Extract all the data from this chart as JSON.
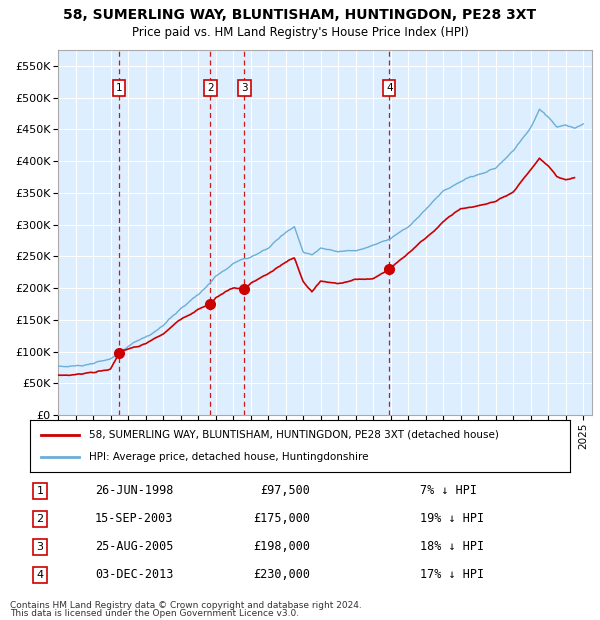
{
  "title": "58, SUMERLING WAY, BLUNTISHAM, HUNTINGDON, PE28 3XT",
  "subtitle": "Price paid vs. HM Land Registry's House Price Index (HPI)",
  "ylim": [
    0,
    575000
  ],
  "yticks": [
    0,
    50000,
    100000,
    150000,
    200000,
    250000,
    300000,
    350000,
    400000,
    450000,
    500000,
    550000
  ],
  "ytick_labels": [
    "£0",
    "£50K",
    "£100K",
    "£150K",
    "£200K",
    "£250K",
    "£300K",
    "£350K",
    "£400K",
    "£450K",
    "£500K",
    "£550K"
  ],
  "hpi_color": "#6baed6",
  "sale_color": "#cc0000",
  "bg_color": "#ddeeff",
  "grid_color": "#ffffff",
  "sale_points": [
    {
      "date_num": 1998.49,
      "price": 97500,
      "label": "1"
    },
    {
      "date_num": 2003.71,
      "price": 175000,
      "label": "2"
    },
    {
      "date_num": 2005.65,
      "price": 198000,
      "label": "3"
    },
    {
      "date_num": 2013.92,
      "price": 230000,
      "label": "4"
    }
  ],
  "sale_labels": [
    {
      "num": "1",
      "date": "26-JUN-1998",
      "price": "£97,500",
      "hpi": "7% ↓ HPI"
    },
    {
      "num": "2",
      "date": "15-SEP-2003",
      "price": "£175,000",
      "hpi": "19% ↓ HPI"
    },
    {
      "num": "3",
      "date": "25-AUG-2005",
      "price": "£198,000",
      "hpi": "18% ↓ HPI"
    },
    {
      "num": "4",
      "date": "03-DEC-2013",
      "price": "£230,000",
      "hpi": "17% ↓ HPI"
    }
  ],
  "legend_entries": [
    "58, SUMERLING WAY, BLUNTISHAM, HUNTINGDON, PE28 3XT (detached house)",
    "HPI: Average price, detached house, Huntingdonshire"
  ],
  "footer_line1": "Contains HM Land Registry data © Crown copyright and database right 2024.",
  "footer_line2": "This data is licensed under the Open Government Licence v3.0.",
  "xlim_start": 1995.0,
  "xlim_end": 2025.5,
  "hpi_anchors": [
    [
      1995.0,
      75000
    ],
    [
      1996.0,
      77000
    ],
    [
      1997.0,
      80000
    ],
    [
      1998.0,
      88000
    ],
    [
      1999.0,
      108000
    ],
    [
      2000.0,
      122000
    ],
    [
      2001.0,
      140000
    ],
    [
      2002.0,
      168000
    ],
    [
      2003.0,
      190000
    ],
    [
      2004.0,
      218000
    ],
    [
      2005.0,
      238000
    ],
    [
      2006.0,
      248000
    ],
    [
      2007.0,
      262000
    ],
    [
      2008.0,
      287000
    ],
    [
      2008.5,
      298000
    ],
    [
      2009.0,
      258000
    ],
    [
      2009.5,
      252000
    ],
    [
      2010.0,
      262000
    ],
    [
      2011.0,
      257000
    ],
    [
      2012.0,
      260000
    ],
    [
      2013.0,
      267000
    ],
    [
      2014.0,
      278000
    ],
    [
      2015.0,
      298000
    ],
    [
      2016.0,
      323000
    ],
    [
      2017.0,
      353000
    ],
    [
      2018.0,
      368000
    ],
    [
      2019.0,
      378000
    ],
    [
      2020.0,
      388000
    ],
    [
      2021.0,
      415000
    ],
    [
      2022.0,
      453000
    ],
    [
      2022.5,
      482000
    ],
    [
      2023.0,
      468000
    ],
    [
      2023.5,
      452000
    ],
    [
      2024.0,
      457000
    ],
    [
      2024.5,
      452000
    ],
    [
      2025.0,
      457000
    ]
  ],
  "sale_anchors": [
    [
      1995.0,
      62000
    ],
    [
      1996.0,
      64000
    ],
    [
      1997.0,
      67000
    ],
    [
      1998.0,
      73000
    ],
    [
      1998.49,
      97500
    ],
    [
      1999.0,
      103000
    ],
    [
      2000.0,
      112000
    ],
    [
      2001.0,
      128000
    ],
    [
      2002.0,
      150000
    ],
    [
      2003.0,
      168000
    ],
    [
      2003.71,
      175000
    ],
    [
      2004.0,
      185000
    ],
    [
      2005.0,
      200000
    ],
    [
      2005.65,
      198000
    ],
    [
      2006.0,
      207000
    ],
    [
      2007.0,
      222000
    ],
    [
      2008.0,
      240000
    ],
    [
      2008.5,
      247000
    ],
    [
      2009.0,
      210000
    ],
    [
      2009.5,
      193000
    ],
    [
      2010.0,
      210000
    ],
    [
      2011.0,
      208000
    ],
    [
      2012.0,
      213000
    ],
    [
      2013.0,
      215000
    ],
    [
      2013.92,
      230000
    ],
    [
      2014.0,
      232000
    ],
    [
      2015.0,
      255000
    ],
    [
      2016.0,
      278000
    ],
    [
      2017.0,
      305000
    ],
    [
      2018.0,
      325000
    ],
    [
      2019.0,
      330000
    ],
    [
      2020.0,
      335000
    ],
    [
      2021.0,
      350000
    ],
    [
      2022.0,
      385000
    ],
    [
      2022.5,
      405000
    ],
    [
      2023.0,
      393000
    ],
    [
      2023.5,
      375000
    ],
    [
      2024.0,
      370000
    ],
    [
      2024.5,
      375000
    ]
  ]
}
